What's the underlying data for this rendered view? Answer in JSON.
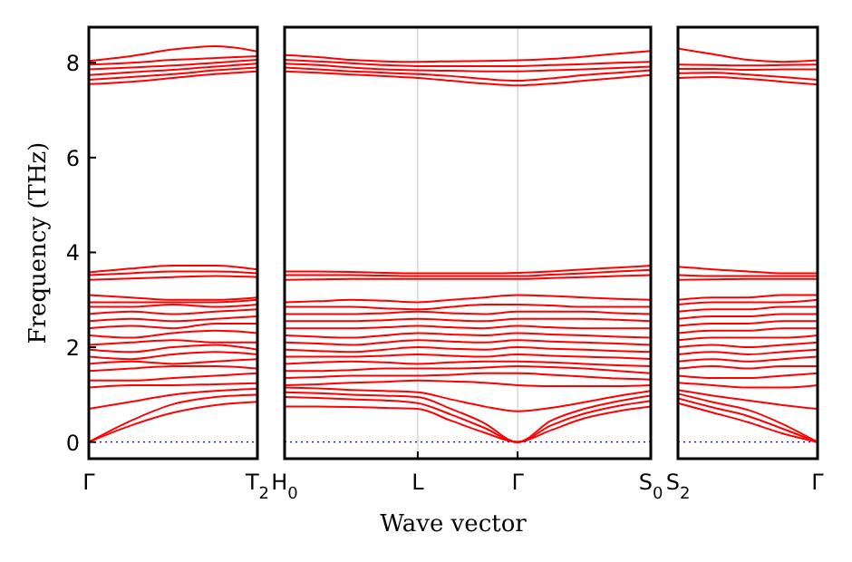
{
  "chart_data": [
    {
      "type": "line",
      "ylabel": "Frequency (THz)",
      "ylim": [
        -0.35,
        8.75
      ],
      "yticks": [
        0,
        2,
        4,
        6,
        8
      ],
      "categories": [
        "Γ",
        null,
        null,
        null,
        "T$_{2}$"
      ],
      "ref_lines": [
        {
          "axis": "y",
          "value": 0,
          "color": "#0000ff",
          "line_style": "dotted"
        }
      ],
      "series": [
        {
          "color": "#ff0000",
          "values": [
            0,
            0.35,
            0.62,
            0.78,
            0.85
          ]
        },
        {
          "color": "#ff0000",
          "values": [
            0,
            0.45,
            0.8,
            0.95,
            1.0
          ]
        },
        {
          "color": "#ff0000",
          "values": [
            0.7,
            0.85,
            1.0,
            1.08,
            1.12
          ]
        },
        {
          "color": "#ff0000",
          "values": [
            1.15,
            1.2,
            1.2,
            1.22,
            1.24
          ]
        },
        {
          "color": "#ff0000",
          "values": [
            1.3,
            1.3,
            1.35,
            1.4,
            1.45
          ]
        },
        {
          "color": "#ff0000",
          "values": [
            1.5,
            1.55,
            1.6,
            1.6,
            1.55
          ]
        },
        {
          "color": "#ff0000",
          "values": [
            1.65,
            1.7,
            1.65,
            1.7,
            1.75
          ]
        },
        {
          "color": "#ff0000",
          "values": [
            1.8,
            1.75,
            1.85,
            1.9,
            1.85
          ]
        },
        {
          "color": "#ff0000",
          "values": [
            1.95,
            1.9,
            2.0,
            2.05,
            1.95
          ]
        },
        {
          "color": "#ff0000",
          "values": [
            2.05,
            2.1,
            2.15,
            2.1,
            2.1
          ]
        },
        {
          "color": "#ff0000",
          "values": [
            2.25,
            2.2,
            2.3,
            2.35,
            2.3
          ]
        },
        {
          "color": "#ff0000",
          "values": [
            2.4,
            2.45,
            2.4,
            2.5,
            2.5
          ]
        },
        {
          "color": "#ff0000",
          "values": [
            2.55,
            2.6,
            2.55,
            2.6,
            2.65
          ]
        },
        {
          "color": "#ff0000",
          "values": [
            2.7,
            2.75,
            2.7,
            2.75,
            2.8
          ]
        },
        {
          "color": "#ff0000",
          "values": [
            2.85,
            2.85,
            2.9,
            2.85,
            2.9
          ]
        },
        {
          "color": "#ff0000",
          "values": [
            2.95,
            2.95,
            2.95,
            2.95,
            3.0
          ]
        },
        {
          "color": "#ff0000",
          "values": [
            3.1,
            3.05,
            3.0,
            3.0,
            3.05
          ]
        },
        {
          "color": "#ff0000",
          "values": [
            3.42,
            3.45,
            3.48,
            3.5,
            3.48
          ]
        },
        {
          "color": "#ff0000",
          "values": [
            3.52,
            3.56,
            3.6,
            3.6,
            3.56
          ]
        },
        {
          "color": "#ff0000",
          "values": [
            3.58,
            3.66,
            3.72,
            3.72,
            3.64
          ]
        },
        {
          "color": "#ff0000",
          "values": [
            7.55,
            7.6,
            7.68,
            7.76,
            7.82
          ]
        },
        {
          "color": "#ff0000",
          "values": [
            7.64,
            7.7,
            7.76,
            7.84,
            7.9
          ]
        },
        {
          "color": "#ff0000",
          "values": [
            7.74,
            7.8,
            7.85,
            7.92,
            7.98
          ]
        },
        {
          "color": "#ff0000",
          "values": [
            7.86,
            7.9,
            7.94,
            8.0,
            8.06
          ]
        },
        {
          "color": "#ff0000",
          "values": [
            7.96,
            8.0,
            8.06,
            8.1,
            8.14
          ]
        },
        {
          "color": "#ff0000",
          "values": [
            8.04,
            8.14,
            8.28,
            8.35,
            8.24
          ]
        }
      ]
    },
    {
      "type": "line",
      "xlabel": "Wave vector",
      "ylim": [
        -0.35,
        8.75
      ],
      "tick_labels": "x",
      "grid": "x",
      "categories": [
        "H$_{0}$",
        null,
        null,
        null,
        "L",
        null,
        null,
        "Γ",
        null,
        null,
        null,
        "S$_{0}$"
      ],
      "ref_lines": [
        {
          "axis": "y",
          "value": 0,
          "color": "#0000ff",
          "line_style": "dotted"
        }
      ],
      "series": [
        {
          "color": "#ff0000",
          "values": [
            0.75,
            0.75,
            0.74,
            0.72,
            0.7,
            0.45,
            0.2,
            0,
            0.25,
            0.5,
            0.65,
            0.75
          ]
        },
        {
          "color": "#ff0000",
          "values": [
            0.95,
            0.93,
            0.9,
            0.88,
            0.82,
            0.58,
            0.3,
            0,
            0.35,
            0.6,
            0.76,
            0.87
          ]
        },
        {
          "color": "#ff0000",
          "values": [
            1.05,
            1.03,
            1.0,
            0.98,
            0.95,
            0.7,
            0.4,
            0,
            0.45,
            0.7,
            0.86,
            0.98
          ]
        },
        {
          "color": "#ff0000",
          "values": [
            1.15,
            1.13,
            1.1,
            1.08,
            1.05,
            0.9,
            0.75,
            0.65,
            0.72,
            0.84,
            0.97,
            1.08
          ]
        },
        {
          "color": "#ff0000",
          "values": [
            1.2,
            1.22,
            1.25,
            1.27,
            1.3,
            1.28,
            1.25,
            1.2,
            1.18,
            1.18,
            1.18,
            1.2
          ]
        },
        {
          "color": "#ff0000",
          "values": [
            1.35,
            1.37,
            1.4,
            1.4,
            1.4,
            1.42,
            1.45,
            1.45,
            1.42,
            1.38,
            1.34,
            1.32
          ]
        },
        {
          "color": "#ff0000",
          "values": [
            1.5,
            1.5,
            1.52,
            1.55,
            1.55,
            1.55,
            1.57,
            1.6,
            1.58,
            1.55,
            1.5,
            1.45
          ]
        },
        {
          "color": "#ff0000",
          "values": [
            1.65,
            1.68,
            1.7,
            1.68,
            1.65,
            1.68,
            1.7,
            1.7,
            1.68,
            1.65,
            1.62,
            1.6
          ]
        },
        {
          "color": "#ff0000",
          "values": [
            1.8,
            1.8,
            1.8,
            1.82,
            1.85,
            1.82,
            1.8,
            1.85,
            1.82,
            1.8,
            1.78,
            1.75
          ]
        },
        {
          "color": "#ff0000",
          "values": [
            1.95,
            1.92,
            1.9,
            1.95,
            2.0,
            1.97,
            1.95,
            2.0,
            1.97,
            1.95,
            1.92,
            1.9
          ]
        },
        {
          "color": "#ff0000",
          "values": [
            2.1,
            2.08,
            2.05,
            2.1,
            2.15,
            2.12,
            2.1,
            2.15,
            2.12,
            2.1,
            2.08,
            2.05
          ]
        },
        {
          "color": "#ff0000",
          "values": [
            2.25,
            2.22,
            2.2,
            2.25,
            2.3,
            2.27,
            2.25,
            2.3,
            2.27,
            2.25,
            2.22,
            2.2
          ]
        },
        {
          "color": "#ff0000",
          "values": [
            2.4,
            2.4,
            2.4,
            2.42,
            2.45,
            2.42,
            2.4,
            2.45,
            2.42,
            2.4,
            2.4,
            2.4
          ]
        },
        {
          "color": "#ff0000",
          "values": [
            2.55,
            2.55,
            2.55,
            2.57,
            2.6,
            2.57,
            2.55,
            2.6,
            2.6,
            2.6,
            2.58,
            2.55
          ]
        },
        {
          "color": "#ff0000",
          "values": [
            2.7,
            2.7,
            2.7,
            2.72,
            2.75,
            2.72,
            2.7,
            2.75,
            2.75,
            2.75,
            2.72,
            2.7
          ]
        },
        {
          "color": "#ff0000",
          "values": [
            2.85,
            2.85,
            2.85,
            2.82,
            2.8,
            2.85,
            2.9,
            2.9,
            2.88,
            2.85,
            2.85,
            2.85
          ]
        },
        {
          "color": "#ff0000",
          "values": [
            2.95,
            2.97,
            3.0,
            2.98,
            2.95,
            3.0,
            3.05,
            3.1,
            3.08,
            3.05,
            3.02,
            3.0
          ]
        },
        {
          "color": "#ff0000",
          "values": [
            3.42,
            3.43,
            3.44,
            3.44,
            3.44,
            3.44,
            3.44,
            3.44,
            3.46,
            3.48,
            3.5,
            3.52
          ]
        },
        {
          "color": "#ff0000",
          "values": [
            3.52,
            3.52,
            3.52,
            3.51,
            3.5,
            3.5,
            3.5,
            3.5,
            3.53,
            3.56,
            3.6,
            3.63
          ]
        },
        {
          "color": "#ff0000",
          "values": [
            3.6,
            3.6,
            3.59,
            3.57,
            3.56,
            3.56,
            3.56,
            3.57,
            3.6,
            3.64,
            3.68,
            3.72
          ]
        },
        {
          "color": "#ff0000",
          "values": [
            7.82,
            7.79,
            7.75,
            7.72,
            7.68,
            7.62,
            7.56,
            7.52,
            7.56,
            7.62,
            7.68,
            7.74
          ]
        },
        {
          "color": "#ff0000",
          "values": [
            7.9,
            7.86,
            7.82,
            7.79,
            7.76,
            7.72,
            7.66,
            7.62,
            7.67,
            7.74,
            7.79,
            7.84
          ]
        },
        {
          "color": "#ff0000",
          "values": [
            7.98,
            7.95,
            7.9,
            7.86,
            7.84,
            7.83,
            7.82,
            7.82,
            7.84,
            7.86,
            7.89,
            7.92
          ]
        },
        {
          "color": "#ff0000",
          "values": [
            8.06,
            8.03,
            7.99,
            7.95,
            7.93,
            7.93,
            7.93,
            7.93,
            7.95,
            7.97,
            8.0,
            8.02
          ]
        },
        {
          "color": "#ff0000",
          "values": [
            8.16,
            8.12,
            8.06,
            8.03,
            8.02,
            8.03,
            8.04,
            8.05,
            8.08,
            8.13,
            8.19,
            8.25
          ]
        }
      ]
    },
    {
      "type": "line",
      "ylim": [
        -0.35,
        8.75
      ],
      "tick_labels": "x",
      "categories": [
        "S$_{2}$",
        null,
        null,
        null,
        "Γ"
      ],
      "ref_lines": [
        {
          "axis": "y",
          "value": 0,
          "color": "#0000ff",
          "line_style": "dotted"
        }
      ],
      "series": [
        {
          "color": "#ff0000",
          "values": [
            0.82,
            0.62,
            0.42,
            0.18,
            0
          ]
        },
        {
          "color": "#ff0000",
          "values": [
            0.92,
            0.73,
            0.55,
            0.28,
            0
          ]
        },
        {
          "color": "#ff0000",
          "values": [
            1.02,
            0.84,
            0.68,
            0.38,
            0
          ]
        },
        {
          "color": "#ff0000",
          "values": [
            1.1,
            0.98,
            0.88,
            0.78,
            0.7
          ]
        },
        {
          "color": "#ff0000",
          "values": [
            1.25,
            1.2,
            1.15,
            1.15,
            1.2
          ]
        },
        {
          "color": "#ff0000",
          "values": [
            1.4,
            1.35,
            1.35,
            1.4,
            1.45
          ]
        },
        {
          "color": "#ff0000",
          "values": [
            1.55,
            1.6,
            1.55,
            1.6,
            1.6
          ]
        },
        {
          "color": "#ff0000",
          "values": [
            1.7,
            1.75,
            1.7,
            1.75,
            1.8
          ]
        },
        {
          "color": "#ff0000",
          "values": [
            1.85,
            1.9,
            1.85,
            1.9,
            1.95
          ]
        },
        {
          "color": "#ff0000",
          "values": [
            2.0,
            2.05,
            2.0,
            2.05,
            2.1
          ]
        },
        {
          "color": "#ff0000",
          "values": [
            2.15,
            2.2,
            2.2,
            2.2,
            2.25
          ]
        },
        {
          "color": "#ff0000",
          "values": [
            2.3,
            2.35,
            2.35,
            2.4,
            2.4
          ]
        },
        {
          "color": "#ff0000",
          "values": [
            2.45,
            2.5,
            2.5,
            2.55,
            2.55
          ]
        },
        {
          "color": "#ff0000",
          "values": [
            2.6,
            2.65,
            2.65,
            2.7,
            2.7
          ]
        },
        {
          "color": "#ff0000",
          "values": [
            2.75,
            2.8,
            2.8,
            2.85,
            2.85
          ]
        },
        {
          "color": "#ff0000",
          "values": [
            2.9,
            2.95,
            2.95,
            2.95,
            3.0
          ]
        },
        {
          "color": "#ff0000",
          "values": [
            3.0,
            3.05,
            3.05,
            3.1,
            3.1
          ]
        },
        {
          "color": "#ff0000",
          "values": [
            3.42,
            3.43,
            3.44,
            3.44,
            3.44
          ]
        },
        {
          "color": "#ff0000",
          "values": [
            3.52,
            3.5,
            3.5,
            3.5,
            3.5
          ]
        },
        {
          "color": "#ff0000",
          "values": [
            3.7,
            3.64,
            3.6,
            3.56,
            3.56
          ]
        },
        {
          "color": "#ff0000",
          "values": [
            7.68,
            7.7,
            7.66,
            7.6,
            7.54
          ]
        },
        {
          "color": "#ff0000",
          "values": [
            7.78,
            7.79,
            7.75,
            7.7,
            7.64
          ]
        },
        {
          "color": "#ff0000",
          "values": [
            7.87,
            7.87,
            7.85,
            7.86,
            7.86
          ]
        },
        {
          "color": "#ff0000",
          "values": [
            7.96,
            7.95,
            7.94,
            7.95,
            7.96
          ]
        },
        {
          "color": "#ff0000",
          "values": [
            8.3,
            8.18,
            8.06,
            8.02,
            8.05
          ]
        }
      ]
    }
  ]
}
